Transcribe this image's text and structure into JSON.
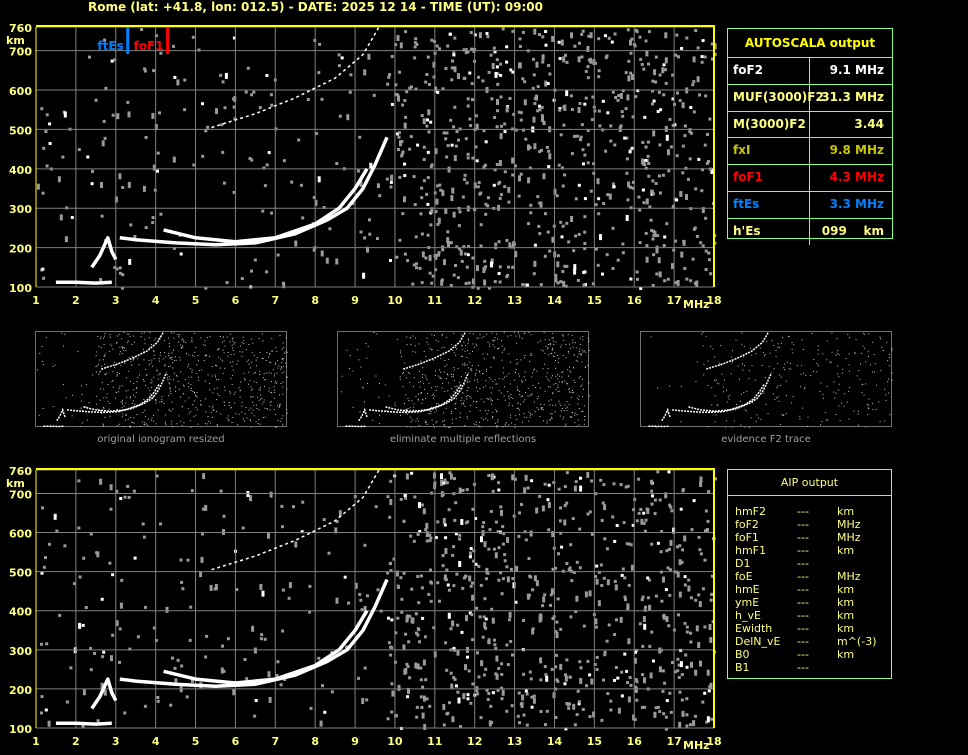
{
  "header": {
    "title": "Rome (lat: +41.8, lon: 012.5) - DATE: 2025 12 14 - TIME (UT): 09:00"
  },
  "colors": {
    "background": "#000000",
    "grid": "#808080",
    "frame": "#ffff00",
    "trace": "#ffffff",
    "noise": "#9a9a9a",
    "ftEs": "#0080ff",
    "foF1": "#ff0000",
    "fxI": "#c8c800",
    "panel_border": "#80ff80",
    "label": "#ffff80"
  },
  "chart_data": [
    {
      "type": "scatter",
      "title": "",
      "xlabel": "MHz",
      "ylabel": "km",
      "xlim": [
        1,
        18
      ],
      "ylim": [
        100,
        760
      ],
      "xticks": [
        "1",
        "2",
        "3",
        "4",
        "5",
        "6",
        "7",
        "8",
        "9",
        "10",
        "11",
        "12",
        "13",
        "14",
        "15",
        "16",
        "17",
        "18"
      ],
      "yticks": [
        "100",
        "200",
        "300",
        "400",
        "500",
        "600",
        "700",
        "760"
      ],
      "grid": true,
      "markers": [
        {
          "label": "ftEs",
          "x": 3.3,
          "color": "#0080ff"
        },
        {
          "label": "foF1",
          "x": 4.3,
          "color": "#ff0000"
        }
      ],
      "traces": [
        {
          "x": [
            1.5,
            2.0,
            2.5,
            2.9
          ],
          "y": [
            112,
            112,
            110,
            112
          ]
        },
        {
          "x": [
            2.4,
            2.6,
            2.8,
            2.9,
            3.0
          ],
          "y": [
            150,
            180,
            225,
            190,
            170
          ]
        },
        {
          "x": [
            3.1,
            3.5,
            4.5,
            5.5,
            6.5,
            7.5,
            8.3,
            8.8,
            9.2,
            9.5,
            9.8
          ],
          "y": [
            225,
            220,
            212,
            207,
            212,
            235,
            270,
            300,
            350,
            410,
            480
          ]
        },
        {
          "x": [
            4.2,
            5.0,
            6.0,
            7.0,
            8.0,
            8.6,
            9.0,
            9.3
          ],
          "y": [
            245,
            225,
            215,
            225,
            260,
            300,
            350,
            400
          ]
        },
        {
          "x": [
            5.4,
            6.5,
            7.5,
            8.5,
            9.2,
            9.6
          ],
          "y": [
            505,
            540,
            580,
            630,
            690,
            760
          ]
        }
      ]
    },
    {
      "type": "scatter",
      "title": "",
      "xlabel": "MHz",
      "ylabel": "km",
      "xlim": [
        1,
        18
      ],
      "ylim": [
        100,
        760
      ],
      "xticks": [
        "1",
        "2",
        "3",
        "4",
        "5",
        "6",
        "7",
        "8",
        "9",
        "10",
        "11",
        "12",
        "13",
        "14",
        "15",
        "16",
        "17",
        "18"
      ],
      "yticks": [
        "100",
        "200",
        "300",
        "400",
        "500",
        "600",
        "700",
        "760"
      ],
      "grid": true,
      "traces": [
        {
          "x": [
            1.5,
            2.0,
            2.5,
            2.9
          ],
          "y": [
            112,
            112,
            110,
            112
          ]
        },
        {
          "x": [
            2.4,
            2.6,
            2.8,
            2.9,
            3.0
          ],
          "y": [
            150,
            180,
            225,
            190,
            170
          ]
        },
        {
          "x": [
            3.1,
            3.5,
            4.5,
            5.5,
            6.5,
            7.5,
            8.3,
            8.8,
            9.2,
            9.5,
            9.8
          ],
          "y": [
            225,
            220,
            212,
            207,
            212,
            235,
            270,
            300,
            350,
            410,
            480
          ]
        },
        {
          "x": [
            4.2,
            5.0,
            6.0,
            7.0,
            8.0,
            8.6,
            9.0,
            9.3
          ],
          "y": [
            245,
            225,
            215,
            225,
            260,
            300,
            350,
            400
          ]
        },
        {
          "x": [
            5.4,
            6.5,
            7.5,
            8.5,
            9.2,
            9.6
          ],
          "y": [
            505,
            540,
            580,
            630,
            690,
            760
          ]
        }
      ]
    }
  ],
  "thumbnails": [
    {
      "caption": "original ionogram resized"
    },
    {
      "caption": "eliminate multiple reflections"
    },
    {
      "caption": "evidence F2 trace"
    }
  ],
  "autoscala": {
    "title": "AUTOSCALA output",
    "rows": [
      {
        "key": "foF2",
        "value": "9.1 MHz",
        "color": "#ffffff"
      },
      {
        "key": "MUF(3000)F2",
        "value": "31.3 MHz",
        "color": "#ffff80"
      },
      {
        "key": "M(3000)F2",
        "value": "3.44",
        "color": "#ffff80"
      },
      {
        "key": "fxI",
        "value": "9.8 MHz",
        "color": "#c8c800"
      },
      {
        "key": "foF1",
        "value": "4.3 MHz",
        "color": "#ff0000"
      },
      {
        "key": "ftEs",
        "value": "3.3 MHz",
        "color": "#0080ff"
      },
      {
        "key": "h'Es",
        "value": "099    km",
        "color": "#ffff80"
      }
    ]
  },
  "aip": {
    "title": "AIP output",
    "rows": [
      {
        "name": "hmF2",
        "value": "---",
        "unit": "km"
      },
      {
        "name": "foF2",
        "value": "---",
        "unit": "MHz"
      },
      {
        "name": "foF1",
        "value": "---",
        "unit": "MHz"
      },
      {
        "name": "hmF1",
        "value": "---",
        "unit": "km"
      },
      {
        "name": "D1",
        "value": "---",
        "unit": ""
      },
      {
        "name": "foE",
        "value": "---",
        "unit": "MHz"
      },
      {
        "name": "hmE",
        "value": "---",
        "unit": "km"
      },
      {
        "name": "ymE",
        "value": "---",
        "unit": "km"
      },
      {
        "name": "h_vE",
        "value": "---",
        "unit": "km"
      },
      {
        "name": "Ewidth",
        "value": "---",
        "unit": "km"
      },
      {
        "name": "DelN_vE",
        "value": "---",
        "unit": "m^(-3)"
      },
      {
        "name": "B0",
        "value": "---",
        "unit": "km"
      },
      {
        "name": "B1",
        "value": "---",
        "unit": ""
      }
    ]
  }
}
